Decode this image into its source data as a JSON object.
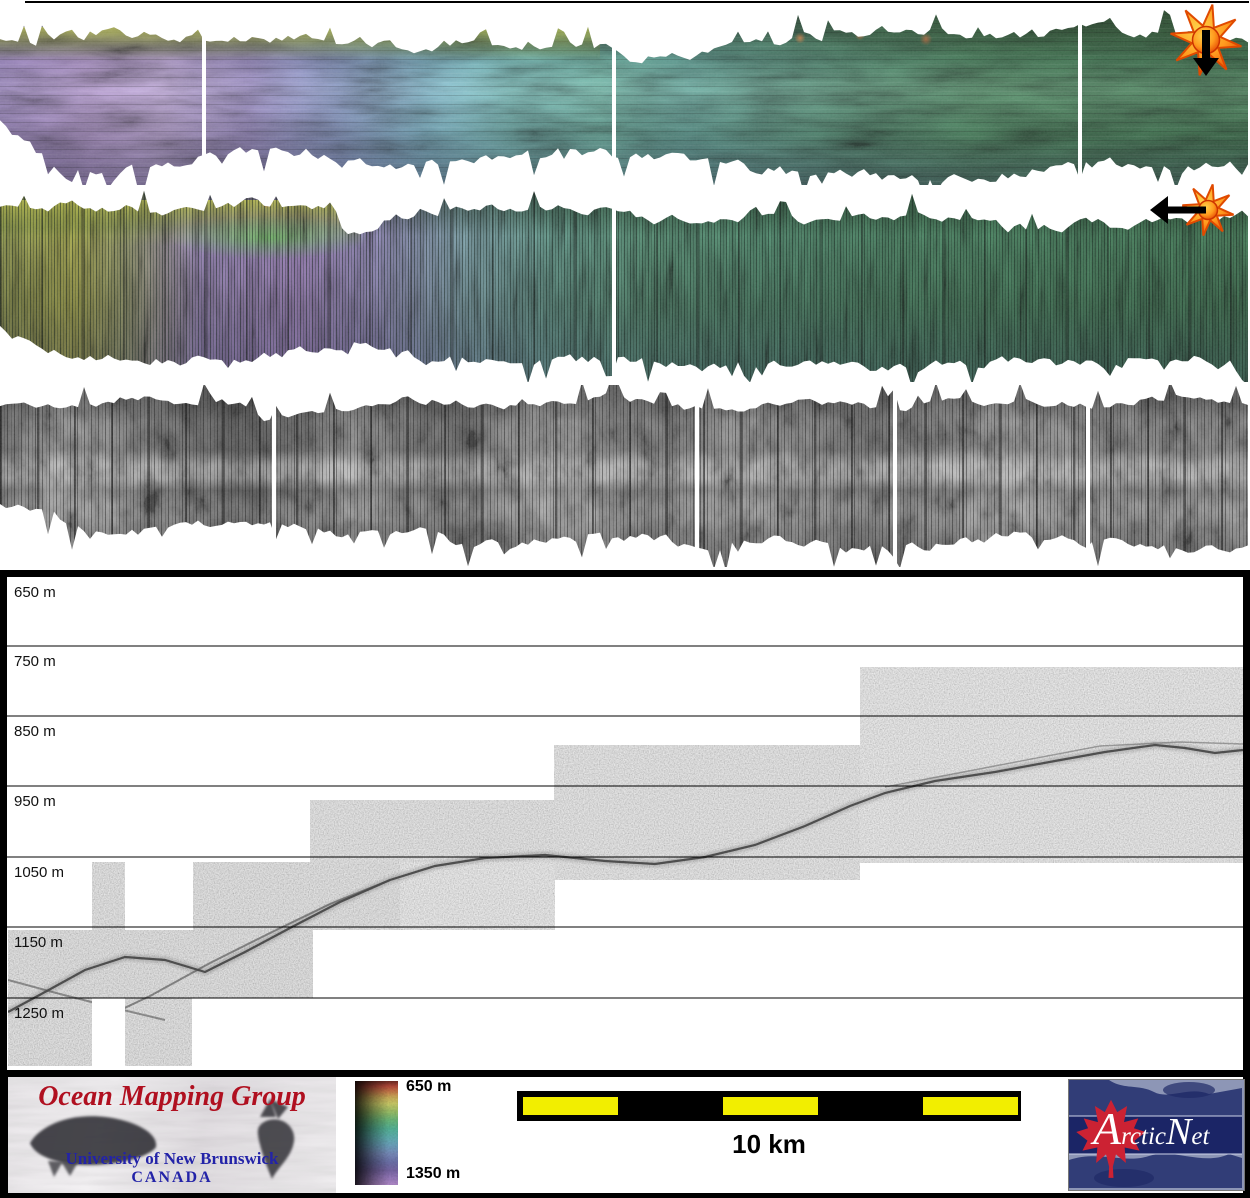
{
  "subbottom": {
    "depth_labels": [
      "650 m",
      "750 m",
      "850 m",
      "950 m",
      "1050 m",
      "1150 m",
      "1250 m"
    ],
    "depth_axis": {
      "unit": "m",
      "ticks": [
        650,
        750,
        850,
        950,
        1050,
        1150,
        1250
      ]
    }
  },
  "colorbar": {
    "top_label": "650 m",
    "bottom_label": "1350 m",
    "range_m": [
      650,
      1350
    ]
  },
  "scalebar": {
    "label": "10 km",
    "segment_colors": [
      "#f2ee00",
      "#000000"
    ]
  },
  "logos": {
    "omg": {
      "title": "Ocean Mapping Group",
      "university": "University of New Brunswick",
      "country": "CANADA"
    },
    "arcticnet": {
      "text": "ArcticNet"
    }
  },
  "icons": {
    "survey_direction_1": "sun-burst-with-down-arrow",
    "survey_direction_2": "sun-burst-with-left-arrow"
  },
  "colors": {
    "scalebar_yellow": "#f2ee00",
    "omg_red": "#b01020",
    "unb_blue": "#2323a8",
    "arcticnet_navy": "#1f2a66",
    "maple_leaf_red": "#cc2233"
  }
}
